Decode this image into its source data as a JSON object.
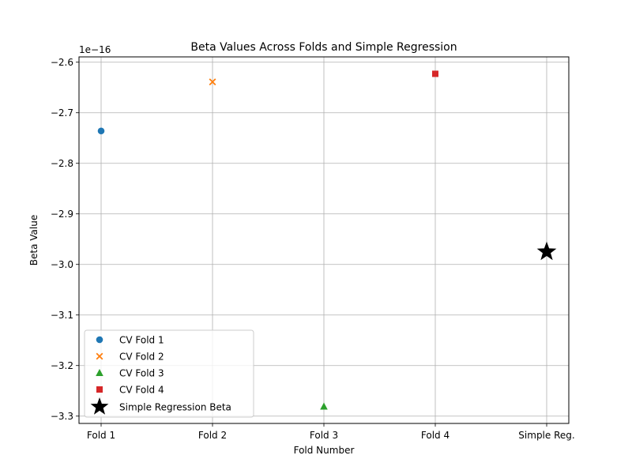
{
  "chart_data": {
    "type": "scatter",
    "title": "Beta Values Across Folds and Simple Regression",
    "xlabel": "Fold Number",
    "ylabel": "Beta Value",
    "offset_label": "1e−16",
    "categories": [
      "Fold 1",
      "Fold 2",
      "Fold 3",
      "Fold 4",
      "Simple Reg."
    ],
    "yticks": [
      -2.6,
      -2.7,
      -2.8,
      -2.9,
      -3.0,
      -3.1,
      -3.2,
      -3.3
    ],
    "ytick_labels": [
      "−2.6",
      "−2.7",
      "−2.8",
      "−2.9",
      "−3.0",
      "−3.1",
      "−3.2",
      "−3.3"
    ],
    "ylim": [
      -3.3145,
      -2.5895
    ],
    "grid": true,
    "legend_position": "lower-left",
    "series": [
      {
        "name": "CV Fold 1",
        "x": "Fold 1",
        "y": -2.736,
        "marker": "circle",
        "color": "#1f77b4"
      },
      {
        "name": "CV Fold 2",
        "x": "Fold 2",
        "y": -2.639,
        "marker": "x",
        "color": "#ff7f0e"
      },
      {
        "name": "CV Fold 3",
        "x": "Fold 3",
        "y": -3.281,
        "marker": "triangle",
        "color": "#2ca02c"
      },
      {
        "name": "CV Fold 4",
        "x": "Fold 4",
        "y": -2.623,
        "marker": "square",
        "color": "#d62728"
      },
      {
        "name": "Simple Regression Beta",
        "x": "Simple Reg.",
        "y": -2.975,
        "marker": "star",
        "color": "#000000"
      }
    ]
  }
}
